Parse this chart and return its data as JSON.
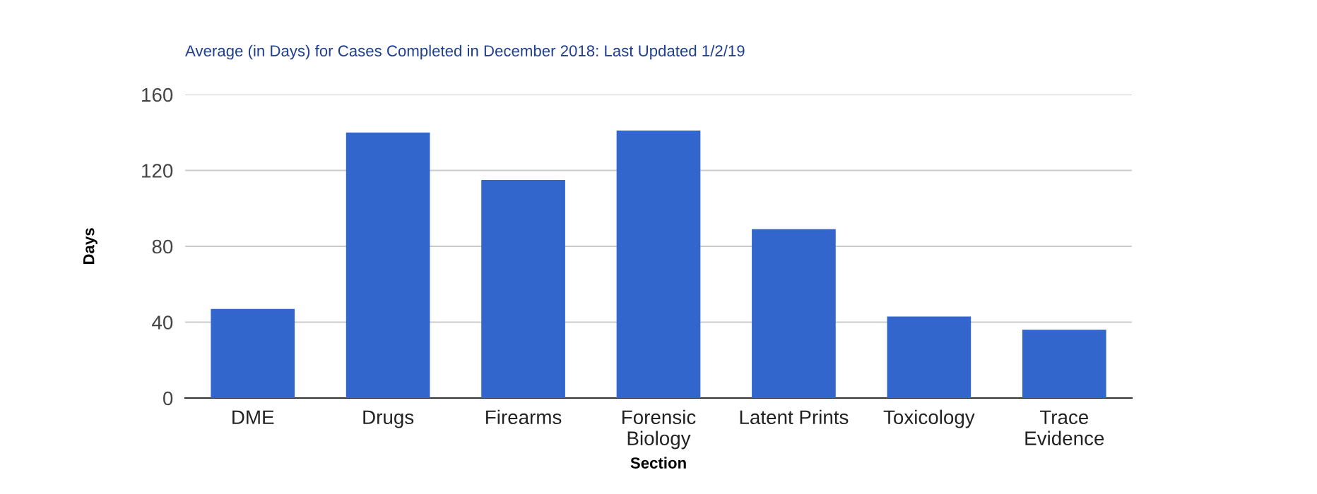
{
  "chart_data": {
    "type": "bar",
    "title": "Average (in Days) for Cases Completed in December 2018: Last Updated 1/2/19",
    "xlabel": "Section",
    "ylabel": "Days",
    "categories": [
      "DME",
      "Drugs",
      "Firearms",
      "Forensic\nBiology",
      "Latent Prints",
      "Toxicology",
      "Trace\nEvidence"
    ],
    "values": [
      47,
      140,
      115,
      141,
      89,
      43,
      36
    ],
    "color": "#3366cc",
    "ylim": [
      0,
      160
    ],
    "yticks": [
      0,
      40,
      80,
      120,
      160
    ],
    "grid": "y"
  }
}
